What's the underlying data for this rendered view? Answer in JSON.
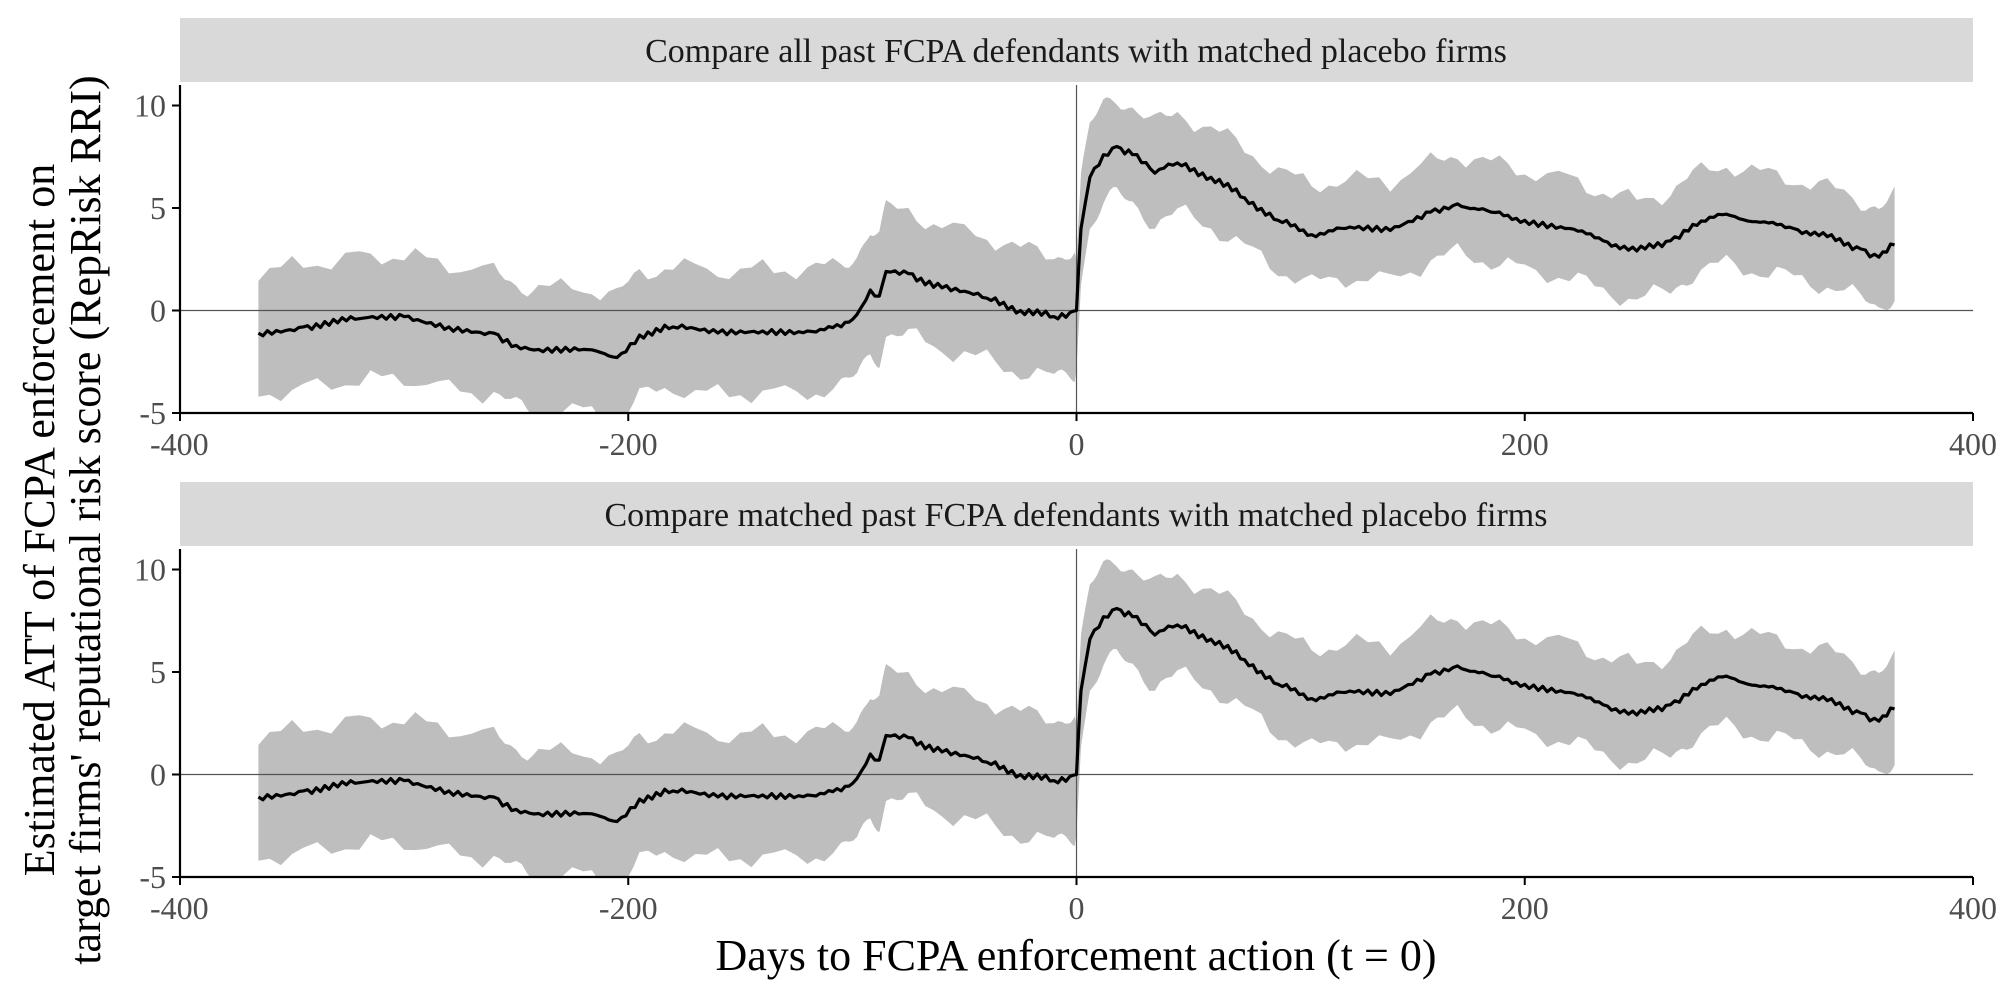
{
  "chart_data": {
    "type": "line",
    "x_axis_title": "Days to FCPA enforcement action (t = 0)",
    "y_axis_title_lines": [
      "Estimated ATT of FCPA enforcement on",
      "target firms' reputational risk score (RepRisk RRI)"
    ],
    "xlim": [
      -400,
      400
    ],
    "ylim": [
      -5,
      11
    ],
    "x_ticks": [
      -400,
      -200,
      0,
      200,
      400
    ],
    "x_tick_labels": [
      "-400",
      "-200",
      "0",
      "200",
      "400"
    ],
    "y_ticks": [
      -5,
      0,
      5,
      10
    ],
    "y_tick_labels": [
      "-5",
      "0",
      "5",
      "10"
    ],
    "reference_lines": {
      "x": 0,
      "y": 0
    },
    "ci_half_width_pre": 3.0,
    "ci_half_width_post": 2.4,
    "panels": [
      {
        "title": "Compare all past FCPA defendants with matched placebo firms",
        "series": {
          "name": "Estimated ATT",
          "points": [
            [
              -365,
              -1.1
            ],
            [
              -345,
              -0.8
            ],
            [
              -320,
              -0.4
            ],
            [
              -300,
              -0.3
            ],
            [
              -280,
              -0.8
            ],
            [
              -260,
              -1.1
            ],
            [
              -250,
              -1.7
            ],
            [
              -240,
              -1.9
            ],
            [
              -220,
              -1.9
            ],
            [
              -205,
              -2.3
            ],
            [
              -195,
              -1.2
            ],
            [
              -180,
              -0.8
            ],
            [
              -160,
              -1.1
            ],
            [
              -140,
              -1.0
            ],
            [
              -120,
              -1.0
            ],
            [
              -105,
              -0.8
            ],
            [
              -98,
              -0.2
            ],
            [
              -92,
              1.0
            ],
            [
              -88,
              0.7
            ],
            [
              -85,
              1.9
            ],
            [
              -75,
              1.8
            ],
            [
              -60,
              1.1
            ],
            [
              -40,
              0.6
            ],
            [
              -25,
              0.0
            ],
            [
              -10,
              -0.3
            ],
            [
              -3,
              -0.1
            ],
            [
              0,
              0.0
            ],
            [
              2,
              4.0
            ],
            [
              6,
              6.5
            ],
            [
              12,
              7.6
            ],
            [
              18,
              8.0
            ],
            [
              25,
              7.6
            ],
            [
              35,
              6.7
            ],
            [
              45,
              7.2
            ],
            [
              60,
              6.5
            ],
            [
              75,
              5.5
            ],
            [
              90,
              4.4
            ],
            [
              105,
              3.7
            ],
            [
              120,
              4.0
            ],
            [
              140,
              3.9
            ],
            [
              158,
              4.8
            ],
            [
              170,
              5.2
            ],
            [
              185,
              4.8
            ],
            [
              200,
              4.4
            ],
            [
              220,
              4.0
            ],
            [
              235,
              3.4
            ],
            [
              250,
              2.9
            ],
            [
              265,
              3.4
            ],
            [
              275,
              4.2
            ],
            [
              290,
              4.7
            ],
            [
              305,
              4.3
            ],
            [
              320,
              4.0
            ],
            [
              335,
              3.6
            ],
            [
              350,
              3.0
            ],
            [
              358,
              2.6
            ],
            [
              365,
              3.2
            ]
          ]
        }
      },
      {
        "title": "Compare matched past FCPA defendants with matched placebo firms",
        "series": {
          "name": "Estimated ATT",
          "points": [
            [
              -365,
              -1.1
            ],
            [
              -345,
              -0.8
            ],
            [
              -320,
              -0.4
            ],
            [
              -300,
              -0.3
            ],
            [
              -280,
              -0.8
            ],
            [
              -260,
              -1.1
            ],
            [
              -250,
              -1.7
            ],
            [
              -240,
              -1.9
            ],
            [
              -220,
              -1.9
            ],
            [
              -205,
              -2.3
            ],
            [
              -195,
              -1.2
            ],
            [
              -180,
              -0.8
            ],
            [
              -160,
              -1.1
            ],
            [
              -140,
              -1.0
            ],
            [
              -120,
              -1.0
            ],
            [
              -105,
              -0.8
            ],
            [
              -98,
              -0.2
            ],
            [
              -92,
              1.0
            ],
            [
              -88,
              0.7
            ],
            [
              -85,
              1.9
            ],
            [
              -75,
              1.8
            ],
            [
              -60,
              1.1
            ],
            [
              -40,
              0.6
            ],
            [
              -25,
              0.0
            ],
            [
              -10,
              -0.3
            ],
            [
              -3,
              -0.1
            ],
            [
              0,
              0.0
            ],
            [
              2,
              4.1
            ],
            [
              6,
              6.6
            ],
            [
              12,
              7.7
            ],
            [
              18,
              8.1
            ],
            [
              25,
              7.7
            ],
            [
              35,
              6.8
            ],
            [
              45,
              7.3
            ],
            [
              60,
              6.6
            ],
            [
              75,
              5.6
            ],
            [
              90,
              4.4
            ],
            [
              105,
              3.7
            ],
            [
              120,
              4.0
            ],
            [
              140,
              3.9
            ],
            [
              158,
              4.9
            ],
            [
              170,
              5.3
            ],
            [
              185,
              4.8
            ],
            [
              200,
              4.4
            ],
            [
              220,
              4.0
            ],
            [
              235,
              3.4
            ],
            [
              250,
              2.9
            ],
            [
              265,
              3.4
            ],
            [
              275,
              4.2
            ],
            [
              290,
              4.8
            ],
            [
              305,
              4.3
            ],
            [
              320,
              4.0
            ],
            [
              335,
              3.6
            ],
            [
              350,
              3.0
            ],
            [
              358,
              2.6
            ],
            [
              365,
              3.2
            ]
          ]
        }
      }
    ]
  }
}
